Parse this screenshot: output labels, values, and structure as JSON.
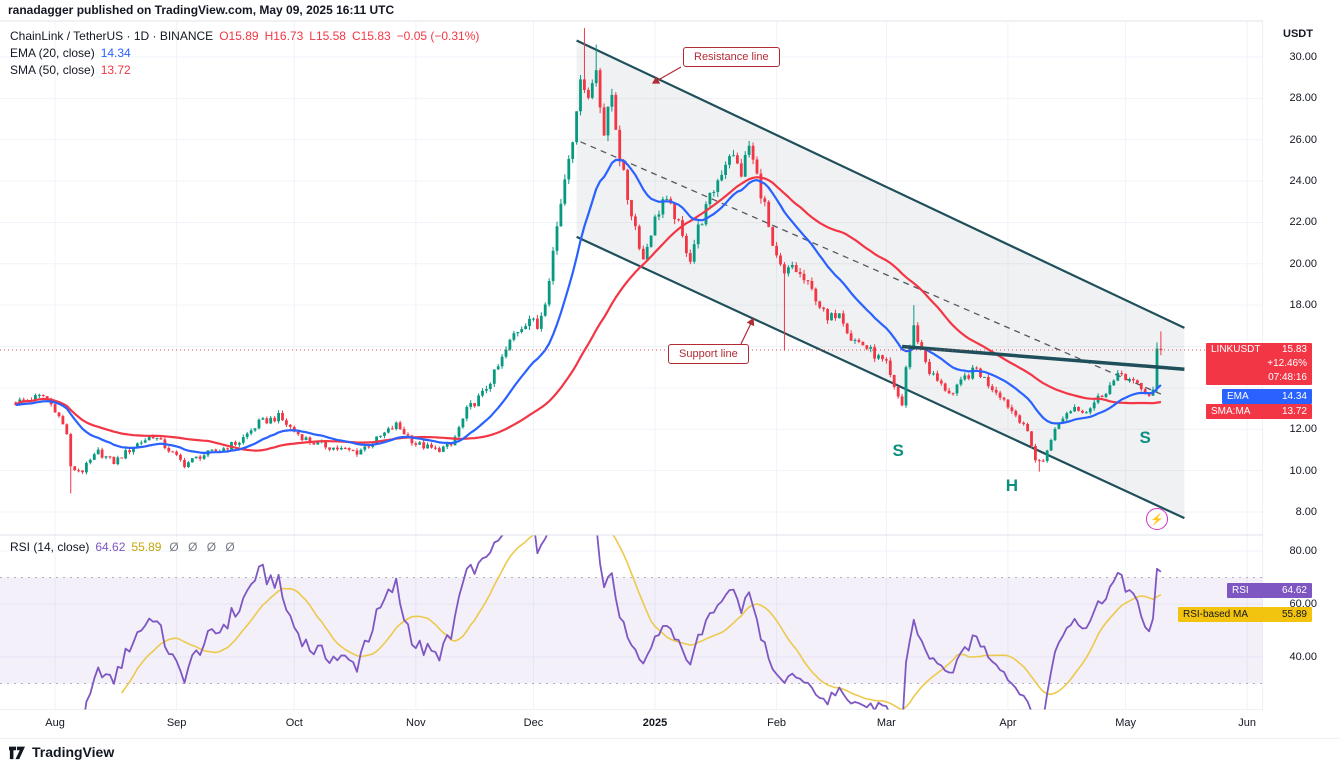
{
  "header": {
    "byline": "ranadagger published on TradingView.com, May 09, 2025 16:11 UTC"
  },
  "legend": {
    "symbol_title": "ChainLink / TetherUS · 1D · BINANCE",
    "ohlc": {
      "o": "O15.89",
      "h": "H16.73",
      "l": "L15.58",
      "c": "C15.83",
      "change": "−0.05 (−0.31%)"
    },
    "ema": {
      "label": "EMA (20, close)",
      "value": "14.34"
    },
    "sma": {
      "label": "SMA (50, close)",
      "value": "13.72"
    }
  },
  "rsi_legend": {
    "label": "RSI (14, close)",
    "value": "64.62",
    "ma_value": "55.89",
    "disabled": "Ø Ø Ø Ø"
  },
  "annotations": {
    "resistance_label": "Resistance line",
    "support_label": "Support line",
    "flash_icon": "⚡"
  },
  "tags": {
    "symbol": "LINKUSDT",
    "price": "15.83",
    "change_pct": "+12.46%",
    "countdown": "07:48:16",
    "ema_label": "EMA",
    "ema_value": "14.34",
    "sma_label": "SMA:MA",
    "sma_value": "13.72",
    "rsi_label": "RSI",
    "rsi_value": "64.62",
    "rsi_ma_label": "RSI-based MA",
    "rsi_ma_value": "55.89"
  },
  "axis": {
    "currency": "USDT",
    "price_ticks": [
      30,
      28,
      26,
      24,
      22,
      20,
      18,
      12,
      10,
      8
    ],
    "rsi_ticks": [
      80,
      60,
      40
    ],
    "months": [
      {
        "label": "Aug",
        "d": 10
      },
      {
        "label": "Sep",
        "d": 41
      },
      {
        "label": "Oct",
        "d": 71
      },
      {
        "label": "Nov",
        "d": 102
      },
      {
        "label": "Dec",
        "d": 132
      },
      {
        "label": "2025",
        "d": 163,
        "bold": true
      },
      {
        "label": "Feb",
        "d": 194
      },
      {
        "label": "Mar",
        "d": 222
      },
      {
        "label": "Apr",
        "d": 253
      },
      {
        "label": "May",
        "d": 283
      },
      {
        "label": "Jun",
        "d": 314
      }
    ]
  },
  "footer": {
    "brand": "TradingView"
  },
  "colors": {
    "up": "#089981",
    "down": "#f23645",
    "ema": "#2962ff",
    "sma": "#f23645",
    "rsi": "#7e57c2",
    "rsi_ma_line": "#edc94d",
    "channel": "#1e4f5a",
    "grid": "#f0f3fa",
    "callout": "#b22b35",
    "pattern": "#0a8f80",
    "dashed_trend": "#55585e",
    "separator": "#e0e3eb"
  },
  "chart_data": {
    "type": "candlestick",
    "title": "ChainLink / TetherUS",
    "symbol": "LINKUSDT",
    "exchange": "BINANCE",
    "timeframe": "1D",
    "last_candle": {
      "open": 15.89,
      "high": 16.73,
      "low": 15.58,
      "close": 15.83,
      "change": -0.05,
      "change_pct": -0.31
    },
    "indicators": {
      "ema20": 14.34,
      "sma50": 13.72,
      "rsi14": 64.62,
      "rsi_based_ma": 55.89
    },
    "price_axis_range": [
      6.9,
      31.7
    ],
    "rsi_axis_range": [
      20,
      86
    ],
    "rsi_band": [
      30,
      70
    ],
    "time_domain_days": [
      -2,
      316
    ],
    "num_candles": 293,
    "close_keypoints": [
      [
        0,
        13.3
      ],
      [
        7,
        13.6
      ],
      [
        10,
        13.0
      ],
      [
        13,
        11.8
      ],
      [
        14,
        10.1
      ],
      [
        17,
        10.0
      ],
      [
        21,
        10.9
      ],
      [
        25,
        10.4
      ],
      [
        31,
        11.3
      ],
      [
        35,
        11.7
      ],
      [
        39,
        11.0
      ],
      [
        43,
        10.3
      ],
      [
        47,
        10.7
      ],
      [
        52,
        11.0
      ],
      [
        57,
        11.4
      ],
      [
        62,
        12.3
      ],
      [
        67,
        12.6
      ],
      [
        71,
        11.9
      ],
      [
        75,
        11.4
      ],
      [
        81,
        11.1
      ],
      [
        87,
        10.9
      ],
      [
        92,
        11.5
      ],
      [
        97,
        12.2
      ],
      [
        102,
        11.3
      ],
      [
        107,
        11.0
      ],
      [
        111,
        11.2
      ],
      [
        115,
        12.9
      ],
      [
        119,
        13.7
      ],
      [
        123,
        15.0
      ],
      [
        127,
        16.6
      ],
      [
        131,
        17.4
      ],
      [
        133,
        16.9
      ],
      [
        135,
        18.3
      ],
      [
        137,
        20.6
      ],
      [
        139,
        23.0
      ],
      [
        141,
        25.4
      ],
      [
        143,
        27.0
      ],
      [
        144,
        29.3
      ],
      [
        146,
        28.0
      ],
      [
        148,
        29.5
      ],
      [
        150,
        26.3
      ],
      [
        152,
        28.2
      ],
      [
        154,
        25.2
      ],
      [
        156,
        23.2
      ],
      [
        158,
        21.8
      ],
      [
        160,
        20.2
      ],
      [
        162,
        21.6
      ],
      [
        165,
        23.1
      ],
      [
        168,
        22.4
      ],
      [
        170,
        21.2
      ],
      [
        172,
        20.3
      ],
      [
        174,
        21.7
      ],
      [
        178,
        23.6
      ],
      [
        182,
        25.4
      ],
      [
        185,
        24.4
      ],
      [
        187,
        25.7
      ],
      [
        189,
        24.2
      ],
      [
        191,
        22.8
      ],
      [
        193,
        20.6
      ],
      [
        196,
        19.4
      ],
      [
        198,
        19.9
      ],
      [
        201,
        19.2
      ],
      [
        204,
        18.4
      ],
      [
        207,
        17.2
      ],
      [
        210,
        17.8
      ],
      [
        213,
        16.4
      ],
      [
        216,
        16.1
      ],
      [
        219,
        15.6
      ],
      [
        222,
        15.1
      ],
      [
        224,
        13.9
      ],
      [
        226,
        13.2
      ],
      [
        227,
        15.0
      ],
      [
        229,
        16.9
      ],
      [
        231,
        15.8
      ],
      [
        233,
        14.8
      ],
      [
        236,
        14.1
      ],
      [
        239,
        13.7
      ],
      [
        242,
        14.5
      ],
      [
        245,
        14.9
      ],
      [
        248,
        14.2
      ],
      [
        251,
        13.7
      ],
      [
        254,
        12.9
      ],
      [
        257,
        12.3
      ],
      [
        260,
        10.6
      ],
      [
        262,
        10.4
      ],
      [
        264,
        11.6
      ],
      [
        267,
        12.6
      ],
      [
        270,
        13.1
      ],
      [
        273,
        12.9
      ],
      [
        276,
        13.5
      ],
      [
        279,
        14.1
      ],
      [
        282,
        14.7
      ],
      [
        284,
        14.4
      ],
      [
        287,
        13.9
      ],
      [
        289,
        13.7
      ],
      [
        291,
        14.0
      ],
      [
        292,
        15.83
      ]
    ],
    "candle_overrides": [
      {
        "i": 14,
        "low": 8.9
      },
      {
        "i": 145,
        "high": 31.4
      },
      {
        "i": 148,
        "high": 30.6
      },
      {
        "i": 196,
        "low": 15.8
      },
      {
        "i": 229,
        "high": 18.0
      },
      {
        "i": 261,
        "low": 9.95
      },
      {
        "i": 291,
        "open": 13.95,
        "high": 16.2,
        "low": 13.8,
        "close": 15.9
      },
      {
        "i": 292,
        "open": 15.89,
        "high": 16.73,
        "low": 15.58,
        "close": 15.83
      }
    ],
    "overlays": {
      "resistance": [
        [
          143,
          30.8
        ],
        [
          298,
          16.9
        ]
      ],
      "support": [
        [
          143,
          21.3
        ],
        [
          298,
          7.7
        ]
      ],
      "dashed_trend": [
        [
          144,
          25.9
        ],
        [
          292,
          13.7
        ]
      ],
      "neckline": [
        [
          226,
          16.0
        ],
        [
          298,
          14.9
        ]
      ],
      "price_line": 15.83
    },
    "pattern_labels": [
      {
        "text": "S",
        "d": 225,
        "price": 10.95
      },
      {
        "text": "H",
        "d": 254,
        "price": 9.25
      },
      {
        "text": "S",
        "d": 288,
        "price": 11.6
      }
    ],
    "callout_arrows": [
      [
        681,
        67,
        653,
        83
      ],
      [
        741,
        344,
        753,
        319
      ]
    ]
  }
}
